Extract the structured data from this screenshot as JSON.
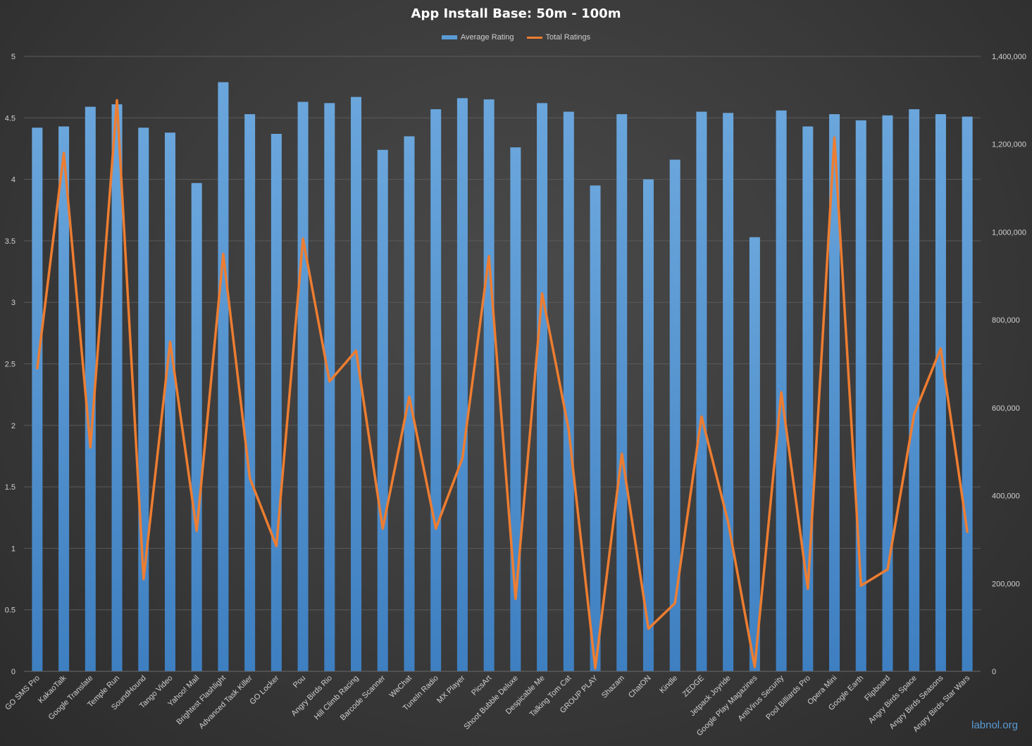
{
  "chart_data": {
    "type": "bar",
    "title": "App Install Base: 50m - 100m",
    "categories": [
      "GO SMS Pro",
      "KakaoTalk",
      "Google Translate",
      "Temple Run",
      "SoundHound",
      "Tango Video",
      "Yahoo! Mail",
      "Brightest Flashlight",
      "Advanced Task Killer",
      "GO Locker",
      "Pou",
      "Angry Birds Rio",
      "Hill Climb Racing",
      "Barcode Scanner",
      "WeChat",
      "TuneIn Radio",
      "MX Player",
      "PicsArt",
      "Shoot Bubble Deluxe",
      "Despicable Me",
      "Talking Tom Cat",
      "GROUP PLAY",
      "Shazam",
      "ChatON",
      "Kindle",
      "ZEDGE",
      "Jetpack Joyride",
      "Google Play Magazines",
      "AntiVirus Security",
      "Pool Billiards Pro",
      "Opera Mini",
      "Google Earth",
      "Flipboard",
      "Angry Birds Space",
      "Angry Birds Seasons",
      "Angry Birds Star Wars"
    ],
    "series": [
      {
        "name": "Average Rating",
        "type": "bar",
        "axis": "left",
        "color": "#5b9bd5",
        "values": [
          4.42,
          4.43,
          4.59,
          4.61,
          4.42,
          4.38,
          3.97,
          4.79,
          4.53,
          4.37,
          4.63,
          4.62,
          4.67,
          4.24,
          4.35,
          4.57,
          4.66,
          4.65,
          4.26,
          4.62,
          4.55,
          3.95,
          4.53,
          4.0,
          4.16,
          4.55,
          4.54,
          3.53,
          4.56,
          4.43,
          4.53,
          4.48,
          4.52,
          4.57,
          4.53,
          4.51
        ]
      },
      {
        "name": "Total Ratings",
        "type": "line",
        "axis": "right",
        "color": "#ed7d31",
        "values": [
          690000,
          1180000,
          510000,
          1300000,
          210000,
          750000,
          320000,
          950000,
          440000,
          285000,
          985000,
          660000,
          730000,
          325000,
          625000,
          325000,
          485000,
          945000,
          165000,
          860000,
          550000,
          7000,
          495000,
          97000,
          155000,
          580000,
          340000,
          10000,
          635000,
          188000,
          1215000,
          195000,
          232000,
          585000,
          735000,
          318000
        ]
      }
    ],
    "y_left": {
      "min": 0,
      "max": 5,
      "ticks": [
        "0",
        "0.5",
        "1",
        "1.5",
        "2",
        "2.5",
        "3",
        "3.5",
        "4",
        "4.5",
        "5"
      ]
    },
    "y_right": {
      "min": 0,
      "max": 1400000,
      "ticks": [
        "0",
        "200,000",
        "400,000",
        "600,000",
        "800,000",
        "1,000,000",
        "1,200,000",
        "1,400,000"
      ]
    },
    "grid": true,
    "legend_position": "top"
  },
  "watermark": "labnol.org",
  "colors": {
    "bar": "#5b9bd5",
    "line": "#ed7d31",
    "text": "#d0d0d0"
  }
}
